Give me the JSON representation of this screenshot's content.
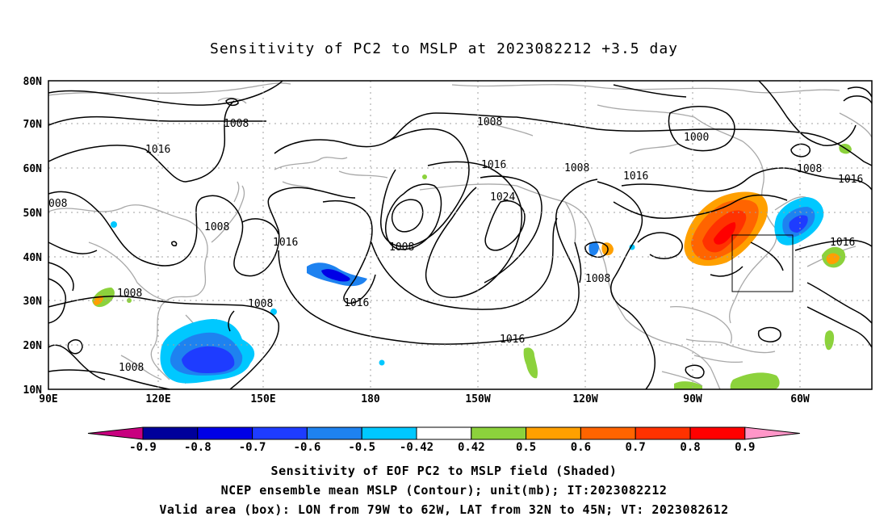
{
  "title": "Sensitivity of PC2 to MSLP at 2023082212 +3.5 day",
  "lat_labels": [
    "80N",
    "70N",
    "60N",
    "50N",
    "40N",
    "30N",
    "20N",
    "10N"
  ],
  "lon_labels": [
    "90E",
    "120E",
    "150E",
    "180",
    "150W",
    "120W",
    "90W",
    "60W"
  ],
  "contour_labels": [
    "1008",
    "1016",
    "008",
    "1008",
    "1016",
    "1008",
    "1008",
    "1008",
    "1008",
    "1016",
    "1024",
    "1008",
    "1016",
    "1016",
    "1008",
    "1008",
    "1016",
    "1000",
    "1008",
    "1016",
    "1016"
  ],
  "colorbar": {
    "labels": [
      "-0.9",
      "-0.8",
      "-0.7",
      "-0.6",
      "-0.5",
      "-0.42",
      "0.42",
      "0.5",
      "0.6",
      "0.7",
      "0.8",
      "0.9"
    ],
    "colors": [
      "#c8007f",
      "#00009b",
      "#0000e6",
      "#1e3cff",
      "#1e82f0",
      "#00c8ff",
      "#ffffff",
      "#8cd23c",
      "#ffa000",
      "#ff6400",
      "#ff3200",
      "#ff0000",
      "#ff96c8"
    ]
  },
  "footer": {
    "line1": "Sensitivity of EOF PC2 to MSLP field (Shaded)",
    "line2": "NCEP ensemble mean MSLP (Contour); unit(mb); IT:2023082212",
    "line3": "Valid area (box): LON from 79W to 62W, LAT from 32N to 45N; VT: 2023082612"
  }
}
